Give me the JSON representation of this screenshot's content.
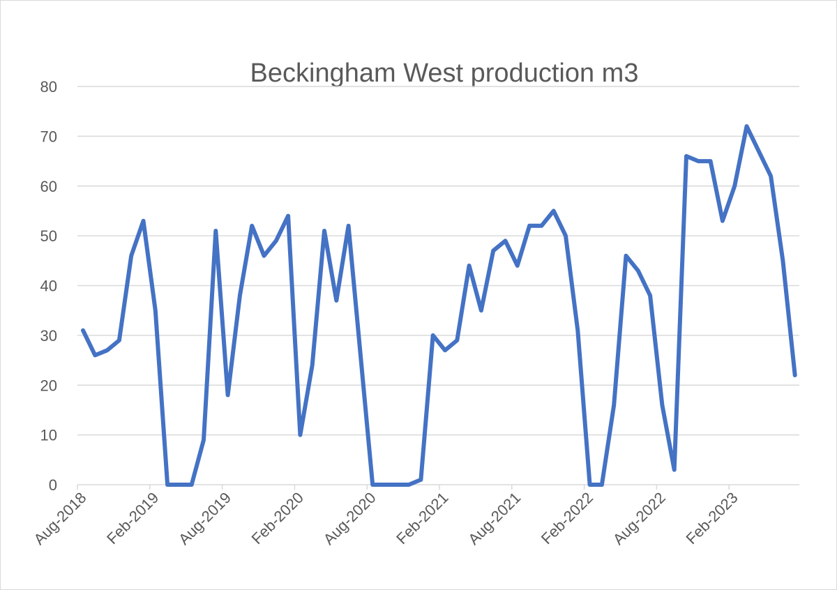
{
  "chart_data": {
    "type": "line",
    "title": "Beckingham West production m3",
    "xlabel": "",
    "ylabel": "",
    "ylim": [
      0,
      80
    ],
    "y_ticks": [
      0,
      10,
      20,
      30,
      40,
      50,
      60,
      70,
      80
    ],
    "y_tick_labels": [
      "0",
      "10",
      "20",
      "30",
      "40",
      "50",
      "60",
      "70",
      "80"
    ],
    "x_tick_labels": [
      "Aug-2018",
      "Feb-2019",
      "Aug-2019",
      "Feb-2020",
      "Aug-2020",
      "Feb-2021",
      "Aug-2021",
      "Feb-2022",
      "Aug-2022",
      "Feb-2023"
    ],
    "grid": true,
    "legend": "none",
    "x": [
      "Aug-2018",
      "Sep-2018",
      "Oct-2018",
      "Nov-2018",
      "Dec-2018",
      "Jan-2019",
      "Feb-2019",
      "Mar-2019",
      "Apr-2019",
      "May-2019",
      "Jun-2019",
      "Jul-2019",
      "Aug-2019",
      "Sep-2019",
      "Oct-2019",
      "Nov-2019",
      "Dec-2019",
      "Jan-2020",
      "Feb-2020",
      "Mar-2020",
      "Apr-2020",
      "May-2020",
      "Jun-2020",
      "Jul-2020",
      "Aug-2020",
      "Sep-2020",
      "Oct-2020",
      "Nov-2020",
      "Dec-2020",
      "Jan-2021",
      "Feb-2021",
      "Mar-2021",
      "Apr-2021",
      "May-2021",
      "Jun-2021",
      "Jul-2021",
      "Aug-2021",
      "Sep-2021",
      "Oct-2021",
      "Nov-2021",
      "Dec-2021",
      "Jan-2022",
      "Feb-2022",
      "Mar-2022",
      "Apr-2022",
      "May-2022",
      "Jun-2022",
      "Jul-2022",
      "Aug-2022",
      "Sep-2022",
      "Oct-2022",
      "Nov-2022",
      "Dec-2022",
      "Jan-2023",
      "Feb-2023",
      "Mar-2023",
      "Apr-2023",
      "May-2023",
      "Jun-2023",
      "Jul-2023"
    ],
    "series": [
      {
        "color": "#4472c4",
        "values": [
          31,
          26,
          27,
          29,
          46,
          53,
          35,
          0,
          0,
          0,
          9,
          51,
          18,
          38,
          52,
          46,
          49,
          54,
          10,
          24,
          51,
          37,
          52,
          26,
          0,
          0,
          0,
          0,
          1,
          30,
          27,
          29,
          44,
          35,
          47,
          49,
          44,
          52,
          52,
          55,
          50,
          31,
          0,
          0,
          16,
          46,
          43,
          38,
          16,
          3,
          66,
          65,
          65,
          53,
          60,
          72,
          67,
          62,
          45,
          22
        ]
      }
    ]
  }
}
